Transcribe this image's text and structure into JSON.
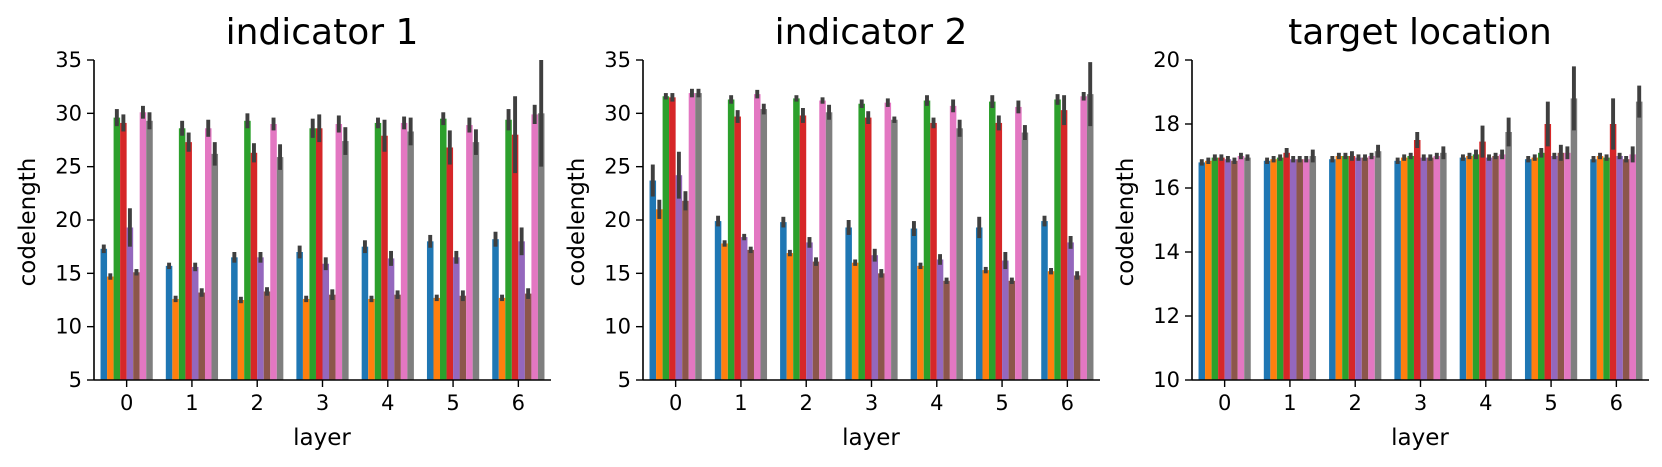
{
  "chart_data": [
    {
      "type": "bar",
      "title": "indicator 1",
      "xlabel": "layer",
      "ylabel": "codelength",
      "ylim": [
        5,
        35
      ],
      "yticks": [
        5,
        10,
        15,
        20,
        25,
        30,
        35
      ],
      "categories": [
        "0",
        "1",
        "2",
        "3",
        "4",
        "5",
        "6"
      ],
      "series": [
        {
          "color": "#1f77b4",
          "values": [
            17.3,
            15.7,
            16.5,
            17.0,
            17.5,
            18.0,
            18.2
          ],
          "err": [
            0.4,
            0.3,
            0.5,
            0.6,
            0.6,
            0.6,
            0.7
          ]
        },
        {
          "color": "#ff7f0e",
          "values": [
            14.7,
            12.6,
            12.5,
            12.6,
            12.6,
            12.7,
            12.7
          ],
          "err": [
            0.3,
            0.3,
            0.3,
            0.3,
            0.3,
            0.3,
            0.3
          ]
        },
        {
          "color": "#2ca02c",
          "values": [
            29.6,
            28.6,
            29.3,
            28.6,
            29.1,
            29.5,
            29.4
          ],
          "err": [
            0.8,
            0.7,
            0.7,
            0.9,
            0.5,
            0.6,
            1.0
          ]
        },
        {
          "color": "#d62728",
          "values": [
            29.1,
            27.3,
            26.3,
            28.6,
            27.9,
            26.8,
            28.0
          ],
          "err": [
            0.8,
            0.9,
            0.9,
            1.3,
            1.5,
            1.6,
            3.6
          ]
        },
        {
          "color": "#9467bd",
          "values": [
            19.3,
            15.6,
            16.5,
            15.9,
            16.4,
            16.5,
            18.0
          ],
          "err": [
            1.8,
            0.4,
            0.5,
            0.6,
            0.7,
            0.6,
            1.3
          ]
        },
        {
          "color": "#8c564b",
          "values": [
            15.1,
            13.2,
            13.3,
            13.0,
            13.0,
            12.9,
            13.1
          ],
          "err": [
            0.3,
            0.4,
            0.4,
            0.5,
            0.4,
            0.5,
            0.5
          ]
        },
        {
          "color": "#e377c2",
          "values": [
            30.1,
            28.6,
            29.0,
            29.0,
            29.1,
            28.9,
            29.9
          ],
          "err": [
            0.6,
            0.8,
            0.6,
            0.8,
            0.6,
            0.7,
            0.9
          ]
        },
        {
          "color": "#7f7f7f",
          "values": [
            29.3,
            26.2,
            25.9,
            27.4,
            28.3,
            27.3,
            30.0
          ],
          "err": [
            0.8,
            1.1,
            1.2,
            1.3,
            1.3,
            1.2,
            5.0
          ]
        }
      ]
    },
    {
      "type": "bar",
      "title": "indicator 2",
      "xlabel": "layer",
      "ylabel": "codelength",
      "ylim": [
        5,
        35
      ],
      "yticks": [
        5,
        10,
        15,
        20,
        25,
        30,
        35
      ],
      "categories": [
        "0",
        "1",
        "2",
        "3",
        "4",
        "5",
        "6"
      ],
      "series": [
        {
          "color": "#1f77b4",
          "values": [
            23.7,
            19.9,
            19.8,
            19.3,
            19.2,
            19.3,
            19.9
          ],
          "err": [
            1.5,
            0.5,
            0.5,
            0.7,
            0.7,
            1.0,
            0.5
          ]
        },
        {
          "color": "#ff7f0e",
          "values": [
            21.0,
            17.8,
            16.9,
            16.0,
            15.7,
            15.3,
            15.2
          ],
          "err": [
            0.9,
            0.3,
            0.3,
            0.3,
            0.3,
            0.3,
            0.3
          ]
        },
        {
          "color": "#2ca02c",
          "values": [
            31.6,
            31.3,
            31.4,
            30.9,
            31.2,
            31.1,
            31.3
          ],
          "err": [
            0.3,
            0.4,
            0.3,
            0.4,
            0.5,
            0.6,
            0.5
          ]
        },
        {
          "color": "#d62728",
          "values": [
            31.5,
            29.7,
            29.8,
            29.6,
            29.1,
            29.1,
            30.3
          ],
          "err": [
            0.4,
            0.6,
            0.7,
            0.6,
            0.5,
            0.7,
            1.4
          ]
        },
        {
          "color": "#9467bd",
          "values": [
            24.2,
            18.4,
            17.9,
            16.7,
            16.3,
            16.2,
            17.9
          ],
          "err": [
            2.2,
            0.3,
            0.5,
            0.6,
            0.5,
            0.8,
            0.6
          ]
        },
        {
          "color": "#8c564b",
          "values": [
            21.8,
            17.2,
            16.1,
            15.0,
            14.3,
            14.3,
            14.8
          ],
          "err": [
            0.9,
            0.3,
            0.4,
            0.4,
            0.3,
            0.3,
            0.4
          ]
        },
        {
          "color": "#e377c2",
          "values": [
            31.9,
            31.8,
            31.2,
            31.0,
            30.7,
            30.6,
            31.6
          ],
          "err": [
            0.4,
            0.4,
            0.3,
            0.4,
            0.6,
            0.6,
            0.4
          ]
        },
        {
          "color": "#7f7f7f",
          "values": [
            31.9,
            30.4,
            30.1,
            29.4,
            28.6,
            28.2,
            31.8
          ],
          "err": [
            0.4,
            0.5,
            0.7,
            0.3,
            0.8,
            0.7,
            3.0
          ]
        }
      ]
    },
    {
      "type": "bar",
      "title": "target location",
      "xlabel": "layer",
      "ylabel": "codelength",
      "ylim": [
        10,
        20
      ],
      "yticks": [
        10,
        12,
        14,
        16,
        18,
        20
      ],
      "categories": [
        "0",
        "1",
        "2",
        "3",
        "4",
        "5",
        "6"
      ],
      "series": [
        {
          "color": "#1f77b4",
          "values": [
            16.8,
            16.85,
            16.9,
            16.85,
            16.95,
            16.9,
            16.9
          ],
          "err": [
            0.1,
            0.1,
            0.1,
            0.1,
            0.1,
            0.1,
            0.1
          ]
        },
        {
          "color": "#ff7f0e",
          "values": [
            16.85,
            16.9,
            17.0,
            16.95,
            17.0,
            16.95,
            17.0
          ],
          "err": [
            0.1,
            0.1,
            0.1,
            0.1,
            0.1,
            0.1,
            0.1
          ]
        },
        {
          "color": "#2ca02c",
          "values": [
            16.95,
            16.95,
            17.0,
            17.0,
            17.05,
            17.1,
            16.95
          ],
          "err": [
            0.1,
            0.1,
            0.1,
            0.1,
            0.15,
            0.15,
            0.1
          ]
        },
        {
          "color": "#d62728",
          "values": [
            16.95,
            17.1,
            17.0,
            17.5,
            17.45,
            18.0,
            18.0
          ],
          "err": [
            0.1,
            0.15,
            0.15,
            0.25,
            0.5,
            0.7,
            0.8
          ]
        },
        {
          "color": "#9467bd",
          "values": [
            16.9,
            16.9,
            16.95,
            16.95,
            16.95,
            17.0,
            17.0
          ],
          "err": [
            0.1,
            0.1,
            0.1,
            0.1,
            0.1,
            0.1,
            0.1
          ]
        },
        {
          "color": "#8c564b",
          "values": [
            16.85,
            16.9,
            16.95,
            16.95,
            17.0,
            17.1,
            16.9
          ],
          "err": [
            0.1,
            0.1,
            0.1,
            0.1,
            0.1,
            0.25,
            0.1
          ]
        },
        {
          "color": "#e377c2",
          "values": [
            17.0,
            16.9,
            17.0,
            17.0,
            17.05,
            17.1,
            17.05
          ],
          "err": [
            0.1,
            0.1,
            0.1,
            0.1,
            0.15,
            0.2,
            0.25
          ]
        },
        {
          "color": "#7f7f7f",
          "values": [
            16.95,
            17.0,
            17.15,
            17.1,
            17.75,
            18.8,
            18.7
          ],
          "err": [
            0.1,
            0.2,
            0.2,
            0.2,
            0.45,
            1.0,
            0.5
          ]
        }
      ]
    }
  ]
}
